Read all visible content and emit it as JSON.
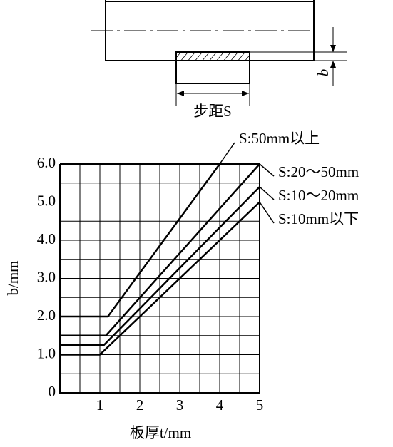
{
  "chart_data": {
    "type": "line",
    "xlabel": "板厚t/mm",
    "ylabel": "b/mm",
    "xlim": [
      0,
      5
    ],
    "ylim": [
      0,
      6
    ],
    "xticks": [
      1,
      2,
      3,
      4,
      5
    ],
    "yticks": [
      0,
      {
        "value": 1,
        "label": "1.0"
      },
      {
        "value": 2,
        "label": "2.0"
      },
      {
        "value": 3,
        "label": "3.0"
      },
      {
        "value": 4,
        "label": "4.0"
      },
      {
        "value": 5,
        "label": "5.0"
      },
      {
        "value": 6,
        "label": "6.0"
      }
    ],
    "xminor": [
      0.5,
      1.5,
      2.5,
      3.5,
      4.5
    ],
    "yminor": [
      0.5,
      1.5,
      2.5,
      3.5,
      4.5,
      5.5
    ],
    "grid": true,
    "series": [
      {
        "name": "S:50mm以上",
        "color": "#000000",
        "x": [
          0,
          1.2,
          4.0
        ],
        "values": [
          2,
          2,
          6
        ]
      },
      {
        "name": "S:20～50mm",
        "color": "#000000",
        "x": [
          0,
          1.15,
          5
        ],
        "values": [
          1.5,
          1.5,
          6
        ]
      },
      {
        "name": "S:10～20mm",
        "color": "#000000",
        "x": [
          0,
          1.1,
          5
        ],
        "values": [
          1.25,
          1.25,
          5.4
        ]
      },
      {
        "name": "S:10mm以下",
        "color": "#000000",
        "x": [
          0,
          1.0,
          5
        ],
        "values": [
          1,
          1,
          5
        ]
      }
    ]
  },
  "diagram": {
    "pitch_label": "步距S",
    "b_label": "b"
  }
}
